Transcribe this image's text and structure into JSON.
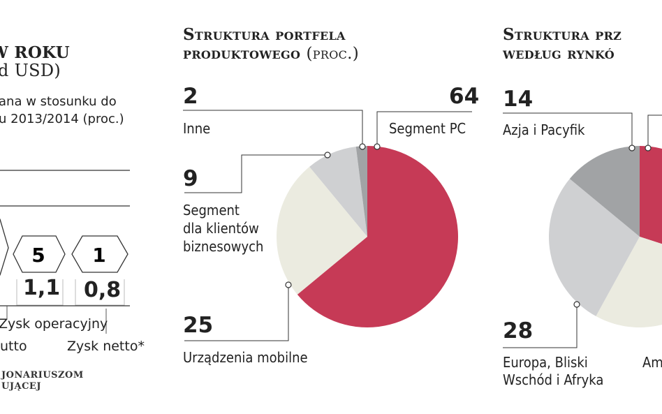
{
  "left_panel": {
    "title_line1": "W ROKU",
    "title_line2": "d USD)",
    "subtitle_line1": "ana w stosunku do",
    "subtitle_line2": "u 2013/2014 (proc.)",
    "hex_values": [
      "5",
      "1"
    ],
    "values": [
      "1,1",
      "0,8"
    ],
    "label_operating": "Zysk operacyjny",
    "label_gross": "utto",
    "label_net": "Zysk netto*",
    "footnote_line1": "JONARIUSZOM",
    "footnote_line2": "UJĄCEJ"
  },
  "chart_data": [
    {
      "type": "pie",
      "title": "Struktura portfela produktowego",
      "title_unit": "(proc.)",
      "slices": [
        {
          "label": "Segment PC",
          "value": 64,
          "color": "#c63a56"
        },
        {
          "label": "Urządzenia mobilne",
          "value": 25,
          "color": "#ebebe0"
        },
        {
          "label": "Segment dla klientów biznesowych",
          "value": 9,
          "color": "#cfd0d2"
        },
        {
          "label": "Inne",
          "value": 2,
          "color": "#a1a3a5"
        }
      ],
      "value_labels": [
        "64",
        "25",
        "9",
        "2"
      ],
      "label_lines": {
        "seg_pc": "Segment PC",
        "mobile": "Urządzenia mobilne",
        "business1": "Segment",
        "business2": "dla klientów",
        "business3": "biznesowych",
        "other": "Inne"
      }
    },
    {
      "type": "pie",
      "title": "Struktura prz",
      "title_line2": "według rynkó",
      "slices": [
        {
          "label": "(cut off)",
          "value": 30,
          "color": "#c63a56"
        },
        {
          "label": "Am",
          "value": 28,
          "color": "#ebebe0"
        },
        {
          "label": "Europa, Bliski Wschód i Afryka",
          "value": 28,
          "color": "#cfd0d2"
        },
        {
          "label": "Azja i Pacyfik",
          "value": 14,
          "color": "#a1a3a5"
        }
      ],
      "value_labels": [
        "14",
        "28"
      ],
      "label_lines": {
        "asia": "Azja i Pacyfik",
        "europe1": "Europa, Bliski",
        "europe2": "Wschód i Afryka",
        "americas": "Am"
      }
    }
  ]
}
